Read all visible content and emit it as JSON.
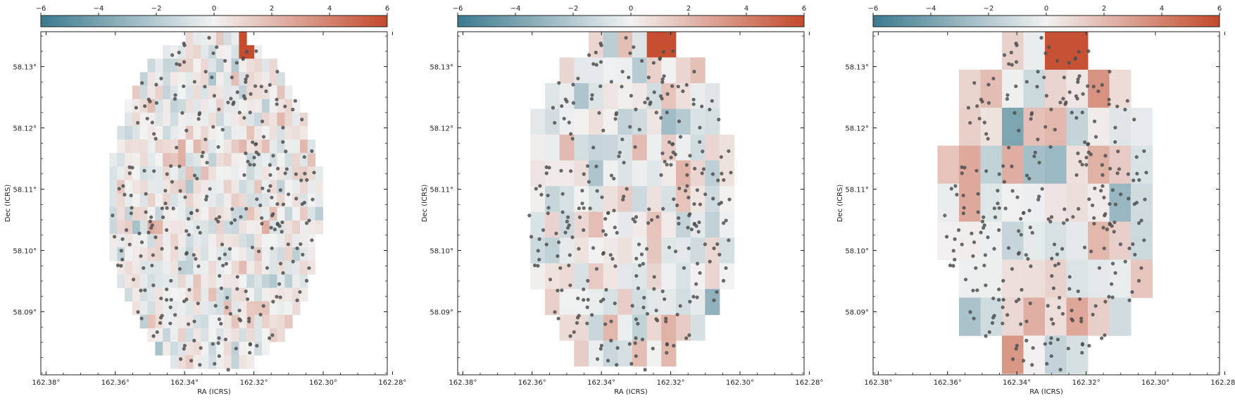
{
  "colors": {
    "negative": "#3b7a8e",
    "neutral": "#f2f2f2",
    "positive": "#c4492b",
    "marker": "#505050"
  },
  "chart_data": [
    {
      "type": "heatmap",
      "panel": "left",
      "xlabel": "RA (ICRS)",
      "ylabel": "Dec (ICRS)",
      "x_ticks": [
        162.38,
        162.36,
        162.34,
        162.32,
        162.3,
        162.28
      ],
      "x_tick_labels": [
        "162.38°",
        "162.36°",
        "162.34°",
        "162.32°",
        "162.30°",
        "162.28°"
      ],
      "y_ticks": [
        58.13,
        58.12,
        58.11,
        58.1,
        58.09
      ],
      "y_tick_labels": [
        "58.13°",
        "58.12°",
        "58.11°",
        "58.10°",
        "58.09°"
      ],
      "xlim": [
        162.3815,
        162.2815
      ],
      "ylim": [
        58.1357,
        58.0797
      ],
      "colorbar": {
        "range": [
          -6,
          6
        ],
        "ticks": [
          -6,
          -4,
          -2,
          0,
          2,
          4,
          6
        ],
        "tick_labels": [
          "−6",
          "−4",
          "−2",
          "0",
          "2",
          "4",
          "6"
        ],
        "placement": "top"
      },
      "bin_size_deg": 0.0022,
      "circle_center": [
        162.3315,
        58.1077
      ],
      "circle_radius_deg": 0.028,
      "extent_ra": [
        162.3815,
        162.2815
      ],
      "hot_bin": {
        "ra": 162.3218,
        "dec": 58.1341,
        "value": 5.9
      },
      "points_count": 300
    },
    {
      "type": "heatmap",
      "panel": "middle",
      "xlabel": "RA (ICRS)",
      "ylabel": "Dec (ICRS)",
      "x_ticks": [
        162.38,
        162.36,
        162.34,
        162.32,
        162.3,
        162.28
      ],
      "x_tick_labels": [
        "162.38°",
        "162.36°",
        "162.34°",
        "162.32°",
        "162.30°",
        "162.28°"
      ],
      "y_ticks": [
        58.13,
        58.12,
        58.11,
        58.1,
        58.09
      ],
      "y_tick_labels": [
        "58.13°",
        "58.12°",
        "58.11°",
        "58.10°",
        "58.09°"
      ],
      "xlim": [
        162.3815,
        162.2815
      ],
      "ylim": [
        58.1357,
        58.0797
      ],
      "colorbar": {
        "range": [
          -6,
          6
        ],
        "ticks": [
          -6,
          -4,
          -2,
          0,
          2,
          4,
          6
        ],
        "tick_labels": [
          "−6",
          "−4",
          "−2",
          "0",
          "2",
          "4",
          "6"
        ],
        "placement": "top"
      },
      "bin_size_deg": 0.0042,
      "circle_center": [
        162.3315,
        58.1077
      ],
      "circle_radius_deg": 0.028,
      "extent_ra": [
        162.3815,
        162.2815
      ],
      "hot_bin": {
        "ra": 162.323,
        "dec": 58.1335,
        "value": 5.8
      },
      "points_count": 300
    },
    {
      "type": "heatmap",
      "panel": "right",
      "xlabel": "RA (ICRS)",
      "ylabel": "Dec (ICRS)",
      "x_ticks": [
        162.38,
        162.36,
        162.34,
        162.32,
        162.3,
        162.28
      ],
      "x_tick_labels": [
        "162.38°",
        "162.36°",
        "162.34°",
        "162.32°",
        "162.30°",
        "162.28°"
      ],
      "y_ticks": [
        58.13,
        58.12,
        58.11,
        58.1,
        58.09
      ],
      "y_tick_labels": [
        "58.13°",
        "58.12°",
        "58.11°",
        "58.10°",
        "58.09°"
      ],
      "xlim": [
        162.3815,
        162.2815
      ],
      "ylim": [
        58.1357,
        58.0797
      ],
      "colorbar": {
        "range": [
          -6,
          6
        ],
        "ticks": [
          -6,
          -4,
          -2,
          0,
          2,
          4,
          6
        ],
        "tick_labels": [
          "−6",
          "−4",
          "−2",
          "0",
          "2",
          "4",
          "6"
        ],
        "placement": "top"
      },
      "bin_size_deg": 0.0062,
      "circle_center": [
        162.3315,
        58.1077
      ],
      "circle_radius_deg": 0.028,
      "extent_ra": [
        162.3815,
        162.2815
      ],
      "hot_bin": {
        "ra": 162.324,
        "dec": 58.1325,
        "value": 5.7
      },
      "points_count": 300
    }
  ]
}
